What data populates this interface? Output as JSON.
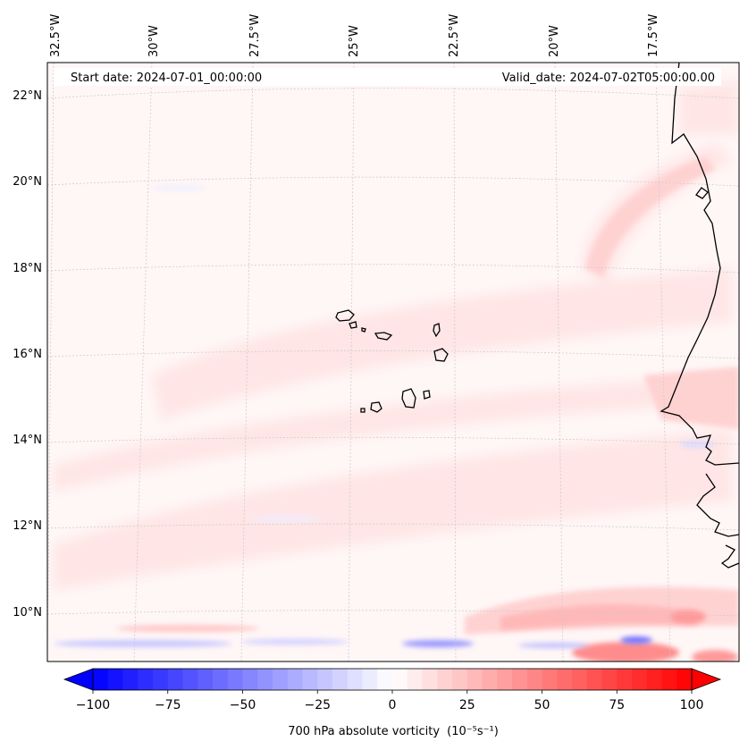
{
  "map": {
    "start_date_label": "Start date: 2024-07-01_00:00:00",
    "valid_date_label": "Valid_date: 2024-07-02T05:00:00.00",
    "lon_labels": [
      "32.5°W",
      "30°W",
      "27.5°W",
      "25°W",
      "22.5°W",
      "20°W",
      "17.5°W"
    ],
    "lat_labels": [
      "22°N",
      "20°N",
      "18°N",
      "16°N",
      "14°N",
      "12°N",
      "10°N"
    ],
    "field_name": "700 hPa absolute vorticity",
    "units": "(10⁻⁵s⁻¹)"
  },
  "colorbar": {
    "ticks": [
      "−100",
      "−75",
      "−50",
      "−25",
      "0",
      "25",
      "50",
      "75",
      "100"
    ],
    "min": -100,
    "max": 100,
    "extend": "both",
    "colors": {
      "negative": "#0000ff",
      "zero": "#ffffff",
      "positive": "#ff0000"
    }
  }
}
